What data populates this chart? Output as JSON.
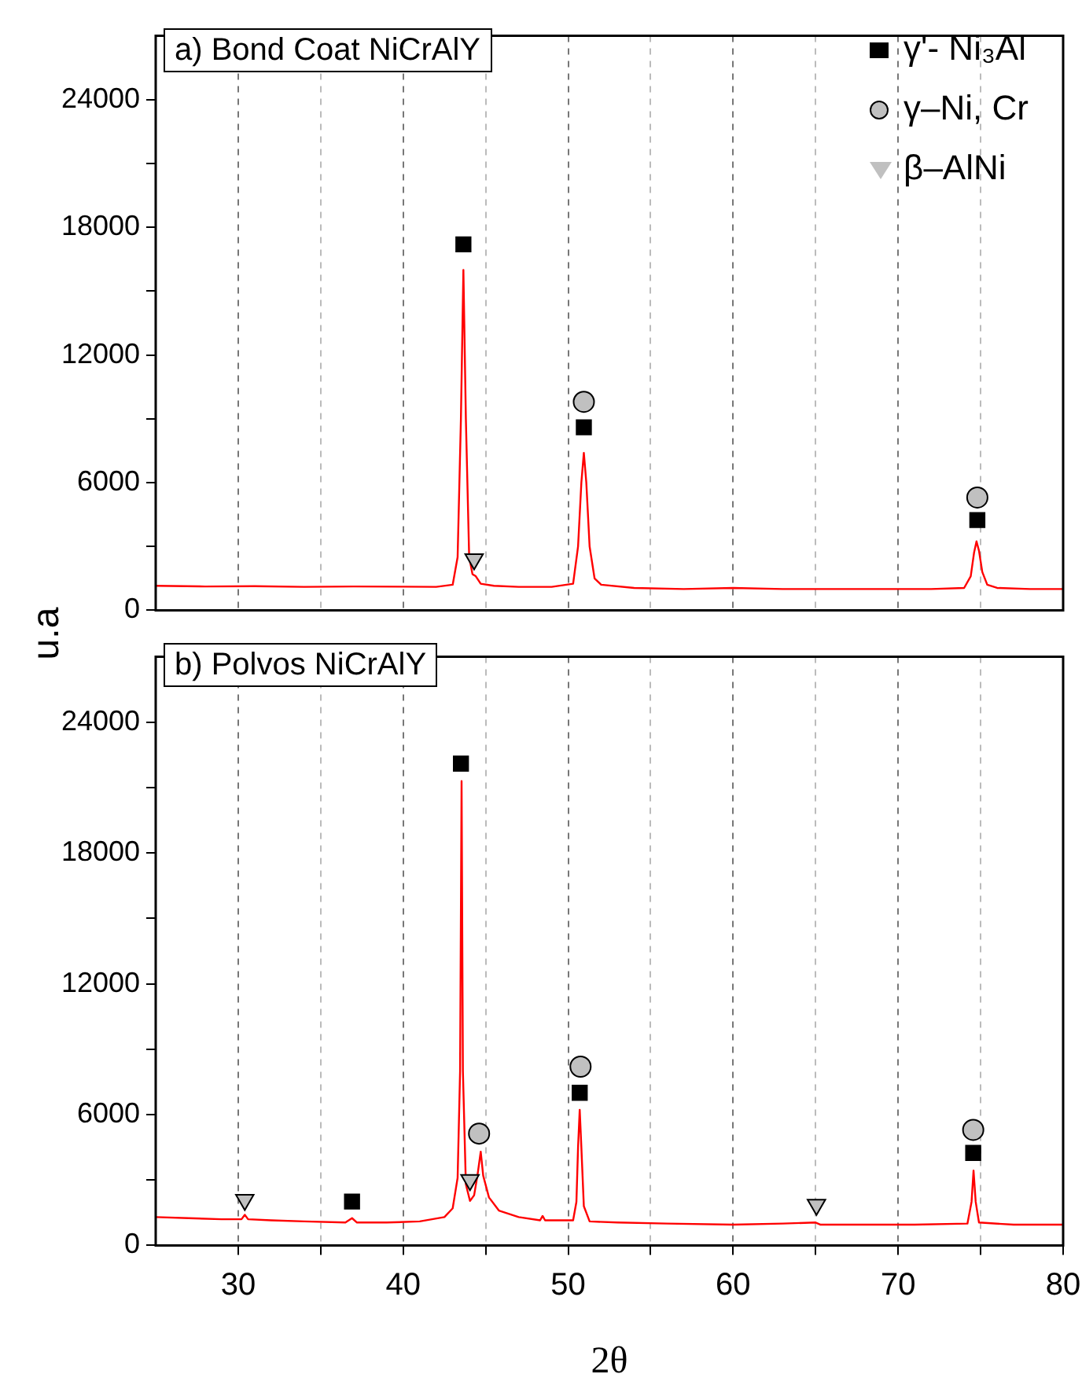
{
  "chart_data": [
    {
      "type": "line",
      "annotations": [
        "a) Bond Coat NiCrAlY"
      ],
      "ylabel": "u.a",
      "xlim": [
        25,
        80
      ],
      "xticks": [
        30,
        {
          "value": 35,
          "label": null
        },
        40,
        {
          "value": 45,
          "label": null
        },
        50,
        {
          "value": 55,
          "label": null
        },
        60,
        {
          "value": 65,
          "label": null
        },
        70,
        {
          "value": 75,
          "label": null
        },
        80
      ],
      "ylim": [
        0,
        27000
      ],
      "yticks": [
        0,
        {
          "value": 3000,
          "label": null
        },
        6000,
        {
          "value": 9000,
          "label": null
        },
        12000,
        {
          "value": 15000,
          "label": null
        },
        18000,
        {
          "value": 21000,
          "label": null
        },
        24000
      ],
      "grid": "x",
      "legend": "top right",
      "tick_labels": "y",
      "series": [
        {
          "type": "line",
          "color": "#ff0000",
          "marker": "none",
          "x": [
            25,
            28,
            31,
            34,
            37,
            40,
            42,
            43,
            43.3,
            43.5,
            43.65,
            43.8,
            44.0,
            44.2,
            44.4,
            44.7,
            45.5,
            47,
            49,
            50.3,
            50.6,
            50.8,
            50.95,
            51.1,
            51.3,
            51.6,
            52,
            54,
            57,
            60,
            63,
            66,
            69,
            72,
            74,
            74.4,
            74.6,
            74.75,
            74.9,
            75.1,
            75.4,
            76,
            78,
            80
          ],
          "values": [
            1150,
            1120,
            1130,
            1100,
            1120,
            1110,
            1100,
            1200,
            2500,
            9000,
            16000,
            9000,
            2500,
            1700,
            1600,
            1250,
            1150,
            1100,
            1100,
            1250,
            3000,
            6000,
            7400,
            6000,
            3000,
            1500,
            1200,
            1050,
            1000,
            1050,
            1000,
            1000,
            1000,
            1000,
            1050,
            1600,
            2700,
            3240,
            2800,
            1800,
            1200,
            1050,
            1000,
            1000
          ]
        },
        {
          "type": "scatter",
          "name": "γ'- Ni₃Al",
          "color": "#000000",
          "marker": "square",
          "x": [
            43.65,
            50.95,
            74.8
          ],
          "values": [
            17200,
            8600,
            4240
          ]
        },
        {
          "type": "scatter",
          "name": "γ–Ni, Cr",
          "color": "#c0c0c0",
          "marker": "circle",
          "x": [
            50.95,
            74.8
          ],
          "values": [
            9800,
            5300
          ]
        },
        {
          "type": "scatter",
          "name": "β–AlNi",
          "color": "#c0c0c0",
          "marker": "triangle",
          "x": [
            44.3
          ],
          "values": [
            2400
          ]
        }
      ]
    },
    {
      "type": "line",
      "annotations": [
        "b) Polvos NiCrAlY"
      ],
      "xlabel": "2θ",
      "xlim": [
        25,
        80
      ],
      "xticks": [
        30,
        {
          "value": 35,
          "label": null
        },
        40,
        {
          "value": 45,
          "label": null
        },
        50,
        {
          "value": 55,
          "label": null
        },
        60,
        {
          "value": 65,
          "label": null
        },
        70,
        {
          "value": 75,
          "label": null
        },
        80
      ],
      "ylim": [
        0,
        27000
      ],
      "yticks": [
        0,
        {
          "value": 3000,
          "label": null
        },
        6000,
        {
          "value": 9000,
          "label": null
        },
        12000,
        {
          "value": 15000,
          "label": null
        },
        18000,
        {
          "value": 21000,
          "label": null
        },
        24000
      ],
      "grid": "x",
      "series": [
        {
          "type": "line",
          "color": "#ff0000",
          "marker": "none",
          "x": [
            25,
            27,
            29,
            30.2,
            30.4,
            30.6,
            32,
            34,
            36.5,
            36.9,
            37.2,
            39,
            41,
            42.5,
            43.0,
            43.3,
            43.45,
            43.54,
            43.62,
            43.8,
            44.05,
            44.3,
            44.5,
            44.7,
            44.85,
            45.2,
            45.8,
            47,
            48.3,
            48.45,
            48.6,
            50.3,
            50.5,
            50.6,
            50.7,
            50.8,
            50.95,
            51.3,
            53,
            56,
            60,
            63,
            65,
            65.3,
            68,
            71,
            74.2,
            74.45,
            74.57,
            74.7,
            74.9,
            77,
            80
          ],
          "values": [
            1300,
            1250,
            1200,
            1200,
            1400,
            1200,
            1150,
            1100,
            1050,
            1250,
            1050,
            1050,
            1100,
            1300,
            1700,
            3100,
            8000,
            21300,
            8000,
            2800,
            2040,
            2300,
            3200,
            4300,
            3200,
            2200,
            1600,
            1300,
            1150,
            1350,
            1150,
            1150,
            2000,
            4500,
            6220,
            4500,
            1800,
            1100,
            1050,
            1000,
            950,
            1000,
            1050,
            950,
            950,
            950,
            1000,
            2000,
            3430,
            2000,
            1050,
            950,
            950
          ]
        },
        {
          "type": "scatter",
          "color": "#000000",
          "marker": "square",
          "x": [
            36.9,
            43.5,
            50.7,
            74.55
          ],
          "values": [
            2010,
            22100,
            7000,
            4240
          ]
        },
        {
          "type": "scatter",
          "color": "#c0c0c0",
          "marker": "circle",
          "x": [
            44.6,
            50.75,
            74.55
          ],
          "values": [
            5130,
            8200,
            5300
          ]
        },
        {
          "type": "scatter",
          "color": "#c0c0c0",
          "marker": "triangle",
          "x": [
            30.4,
            44.05,
            65.05
          ],
          "values": [
            2090,
            3000,
            1860
          ]
        }
      ]
    }
  ]
}
